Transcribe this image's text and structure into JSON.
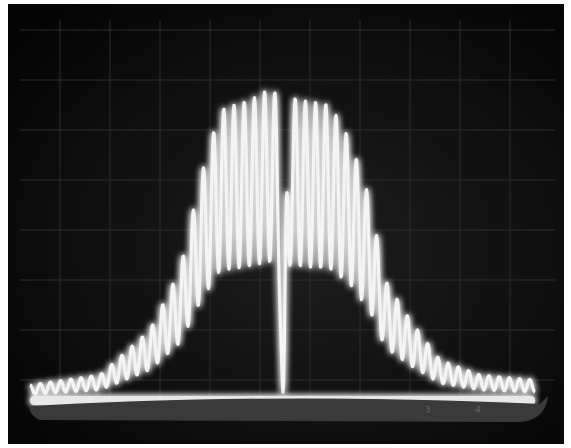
{
  "scale_labels": [
    "3",
    "4"
  ]
}
